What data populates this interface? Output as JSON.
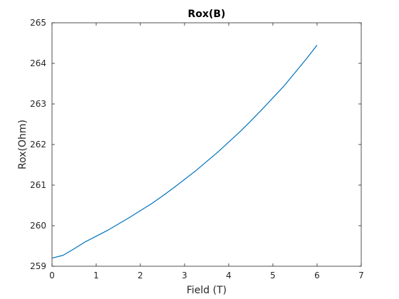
{
  "chart_data": {
    "type": "line",
    "title": "Rox(B)",
    "xlabel": "Field (T)",
    "ylabel": "Rox(Ohm)",
    "xlim": [
      0,
      7
    ],
    "ylim": [
      259,
      265
    ],
    "xticks": [
      0,
      1,
      2,
      3,
      4,
      5,
      6,
      7
    ],
    "yticks": [
      259,
      260,
      261,
      262,
      263,
      264,
      265
    ],
    "grid": false,
    "box": true,
    "series": [
      {
        "color": "#0072bd",
        "x": [
          0,
          0.25,
          0.5,
          0.75,
          1,
          1.25,
          1.5,
          1.75,
          2,
          2.25,
          2.5,
          2.75,
          3,
          3.25,
          3.5,
          3.75,
          4,
          4.25,
          4.5,
          4.75,
          5,
          5.25,
          5.5,
          5.75,
          6
        ],
        "y": [
          259.2,
          259.27,
          259.43,
          259.6,
          259.74,
          259.88,
          260.04,
          260.2,
          260.37,
          260.54,
          260.73,
          260.93,
          261.14,
          261.35,
          261.58,
          261.81,
          262.06,
          262.31,
          262.58,
          262.86,
          263.15,
          263.44,
          263.77,
          264.1,
          264.45
        ]
      }
    ]
  }
}
